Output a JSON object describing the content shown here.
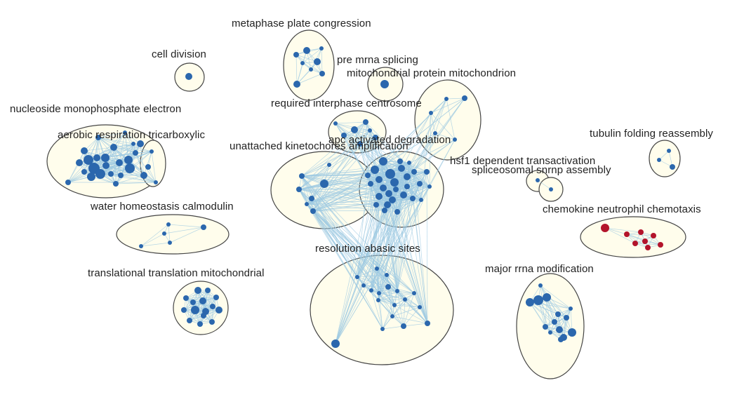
{
  "colors": {
    "node_default": "#2b67ad",
    "node_highlight": "#b3142b",
    "edge": "#9ecae1",
    "cluster_fill": "#fffdec",
    "cluster_stroke": "#444444"
  },
  "clusters": [
    {
      "id": "metaphase",
      "label": "metaphase plate congression"
    },
    {
      "id": "cell_division",
      "label": "cell division"
    },
    {
      "id": "pre_mrna",
      "label": "pre mrna splicing"
    },
    {
      "id": "mito_protein",
      "label": "mitochondrial protein mitochondrion"
    },
    {
      "id": "nucleoside",
      "label": "nucleoside monophosphate electron"
    },
    {
      "id": "centrosome",
      "label": "required interphase centrosome"
    },
    {
      "id": "aerobic",
      "label": "aerobic respiration tricarboxylic"
    },
    {
      "id": "apc",
      "label": "apc activated degradation"
    },
    {
      "id": "kinetochores",
      "label": "unattached kinetochores amplification"
    },
    {
      "id": "tubulin",
      "label": "tubulin folding reassembly"
    },
    {
      "id": "hsf1",
      "label": "hsf1 dependent transactivation"
    },
    {
      "id": "spliceosomal",
      "label": "spliceosomal snrnp assembly"
    },
    {
      "id": "water",
      "label": "water homeostasis calmodulin"
    },
    {
      "id": "chemokine",
      "label": "chemokine neutrophil chemotaxis"
    },
    {
      "id": "resolution",
      "label": "resolution abasic sites"
    },
    {
      "id": "translational",
      "label": "translational translation mitochondrial"
    },
    {
      "id": "rrna",
      "label": "major rrna modification"
    }
  ]
}
